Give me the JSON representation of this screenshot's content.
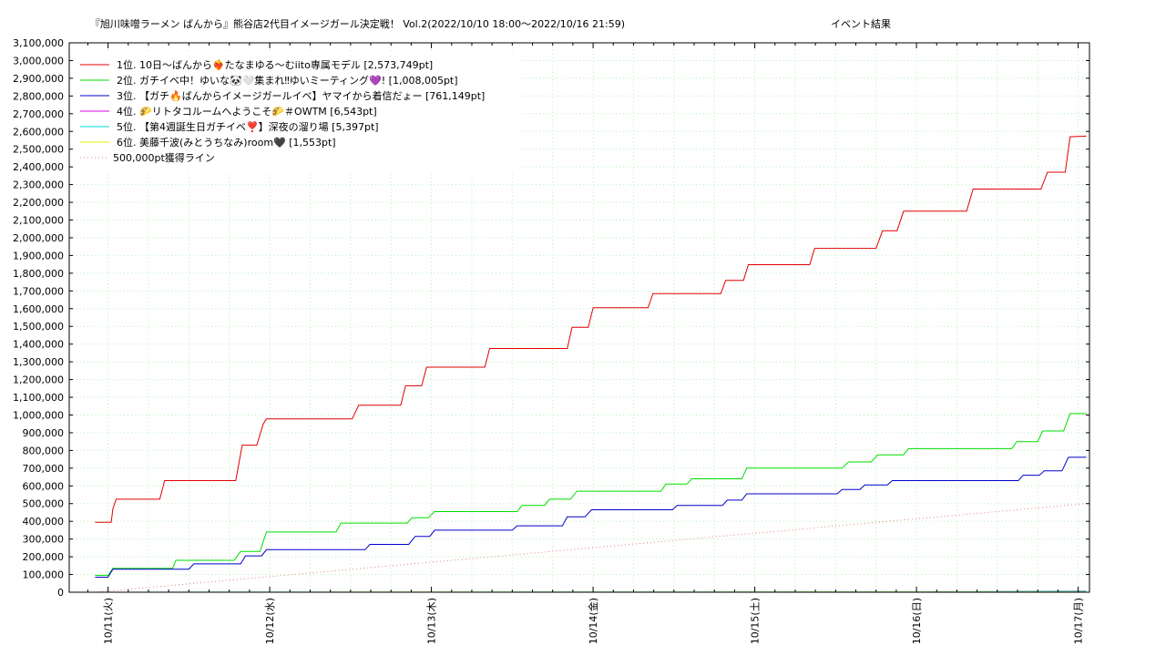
{
  "chart_data": {
    "type": "line",
    "title": "『旭川味噌ラーメン ばんから』熊谷店2代目イメージガール決定戦！ Vol.2(2022/10/10 18:00～2022/10/16 21:59)",
    "subtitle": "イベント結果",
    "xlabel": "",
    "ylabel": "",
    "ylim": [
      0,
      3100000
    ],
    "xlim": [
      0,
      6.07
    ],
    "grid": true,
    "legend_position": "top-left",
    "y_ticks": [
      "0",
      "100,000",
      "200,000",
      "300,000",
      "400,000",
      "500,000",
      "600,000",
      "700,000",
      "800,000",
      "900,000",
      "1,000,000",
      "1,100,000",
      "1,200,000",
      "1,300,000",
      "1,400,000",
      "1,500,000",
      "1,600,000",
      "1,700,000",
      "1,800,000",
      "1,900,000",
      "2,000,000",
      "2,100,000",
      "2,200,000",
      "2,300,000",
      "2,400,000",
      "2,500,000",
      "2,600,000",
      "2,700,000",
      "2,800,000",
      "2,900,000",
      "3,000,000",
      "3,100,000"
    ],
    "x_ticks": [
      {
        "value": 0,
        "label": "10/11(火)"
      },
      {
        "value": 1,
        "label": "10/12(水)"
      },
      {
        "value": 2,
        "label": "10/13(木)"
      },
      {
        "value": 3,
        "label": "10/14(金)"
      },
      {
        "value": 4,
        "label": "10/15(土)"
      },
      {
        "value": 5,
        "label": "10/16(日)"
      },
      {
        "value": 6,
        "label": "10/17(月)"
      }
    ],
    "series": [
      {
        "name": "1位. 10日〜ばんから❤️‍🔥たなまゆる〜むiito専属モデル [2,573,749pt]",
        "color": "#e00000",
        "points": [
          [
            -0.08,
            395000
          ],
          [
            0.02,
            395000
          ],
          [
            0.03,
            470000
          ],
          [
            0.05,
            525000
          ],
          [
            0.32,
            525000
          ],
          [
            0.35,
            630000
          ],
          [
            0.79,
            630000
          ],
          [
            0.83,
            830000
          ],
          [
            0.92,
            830000
          ],
          [
            0.96,
            950000
          ],
          [
            0.98,
            978000
          ],
          [
            1.51,
            978000
          ],
          [
            1.55,
            1055000
          ],
          [
            1.81,
            1055000
          ],
          [
            1.84,
            1165000
          ],
          [
            1.94,
            1165000
          ],
          [
            1.97,
            1270000
          ],
          [
            2.33,
            1270000
          ],
          [
            2.36,
            1375000
          ],
          [
            2.84,
            1375000
          ],
          [
            2.87,
            1495000
          ],
          [
            2.97,
            1495000
          ],
          [
            3.0,
            1605000
          ],
          [
            3.34,
            1605000
          ],
          [
            3.37,
            1685000
          ],
          [
            3.79,
            1685000
          ],
          [
            3.82,
            1760000
          ],
          [
            3.93,
            1760000
          ],
          [
            3.96,
            1848000
          ],
          [
            4.34,
            1848000
          ],
          [
            4.37,
            1940000
          ],
          [
            4.75,
            1940000
          ],
          [
            4.79,
            2040000
          ],
          [
            4.88,
            2040000
          ],
          [
            4.92,
            2150000
          ],
          [
            5.31,
            2150000
          ],
          [
            5.35,
            2275000
          ],
          [
            5.77,
            2275000
          ],
          [
            5.81,
            2370000
          ],
          [
            5.92,
            2370000
          ],
          [
            5.95,
            2570000
          ],
          [
            6.05,
            2573749
          ]
        ]
      },
      {
        "name": "2位. ガチイベ中！ゆいな🐼🤍集まれ‼ゆいミーティング💜! [1,008,005pt]",
        "color": "#00dd00",
        "points": [
          [
            -0.08,
            95000
          ],
          [
            0.0,
            95000
          ],
          [
            0.03,
            135000
          ],
          [
            0.4,
            135000
          ],
          [
            0.42,
            180000
          ],
          [
            0.78,
            180000
          ],
          [
            0.82,
            230000
          ],
          [
            0.94,
            230000
          ],
          [
            0.98,
            340000
          ],
          [
            1.41,
            340000
          ],
          [
            1.44,
            390000
          ],
          [
            1.85,
            390000
          ],
          [
            1.88,
            420000
          ],
          [
            1.98,
            420000
          ],
          [
            2.02,
            455000
          ],
          [
            2.53,
            455000
          ],
          [
            2.56,
            490000
          ],
          [
            2.7,
            490000
          ],
          [
            2.73,
            525000
          ],
          [
            2.86,
            525000
          ],
          [
            2.9,
            570000
          ],
          [
            3.42,
            570000
          ],
          [
            3.45,
            610000
          ],
          [
            3.58,
            610000
          ],
          [
            3.61,
            640000
          ],
          [
            3.92,
            640000
          ],
          [
            3.95,
            700000
          ],
          [
            4.54,
            700000
          ],
          [
            4.58,
            735000
          ],
          [
            4.72,
            735000
          ],
          [
            4.76,
            775000
          ],
          [
            4.92,
            775000
          ],
          [
            4.95,
            810000
          ],
          [
            5.59,
            810000
          ],
          [
            5.62,
            850000
          ],
          [
            5.75,
            850000
          ],
          [
            5.78,
            910000
          ],
          [
            5.91,
            910000
          ],
          [
            5.95,
            1008005
          ],
          [
            6.05,
            1008005
          ]
        ]
      },
      {
        "name": "3位. 【ガチ🔥ばんからイメージガールイベ】ヤマイから着信だょー [761,149pt]",
        "color": "#0000cc",
        "points": [
          [
            -0.08,
            85000
          ],
          [
            0.0,
            85000
          ],
          [
            0.03,
            130000
          ],
          [
            0.5,
            130000
          ],
          [
            0.53,
            160000
          ],
          [
            0.82,
            160000
          ],
          [
            0.85,
            205000
          ],
          [
            0.95,
            205000
          ],
          [
            0.98,
            240000
          ],
          [
            1.59,
            240000
          ],
          [
            1.62,
            270000
          ],
          [
            1.86,
            270000
          ],
          [
            1.9,
            315000
          ],
          [
            1.99,
            315000
          ],
          [
            2.02,
            350000
          ],
          [
            2.5,
            350000
          ],
          [
            2.53,
            375000
          ],
          [
            2.81,
            375000
          ],
          [
            2.84,
            425000
          ],
          [
            2.95,
            425000
          ],
          [
            2.99,
            465000
          ],
          [
            3.49,
            465000
          ],
          [
            3.52,
            490000
          ],
          [
            3.8,
            490000
          ],
          [
            3.83,
            520000
          ],
          [
            3.92,
            520000
          ],
          [
            3.95,
            555000
          ],
          [
            4.51,
            555000
          ],
          [
            4.54,
            580000
          ],
          [
            4.65,
            580000
          ],
          [
            4.68,
            605000
          ],
          [
            4.82,
            605000
          ],
          [
            4.85,
            630000
          ],
          [
            5.63,
            630000
          ],
          [
            5.66,
            660000
          ],
          [
            5.76,
            660000
          ],
          [
            5.79,
            685000
          ],
          [
            5.9,
            685000
          ],
          [
            5.94,
            761149
          ],
          [
            6.05,
            761149
          ]
        ]
      },
      {
        "name": "4位. 🌮リトタコルームへようこそ🌮＃OWTM [6,543pt]",
        "color": "#dd00dd",
        "points": [
          [
            -0.08,
            0
          ],
          [
            5.0,
            0
          ],
          [
            6.05,
            6543
          ]
        ]
      },
      {
        "name": "5位. 【第4週誕生日ガチイベ❣️】深夜の溜り場 [5,397pt]",
        "color": "#00dddd",
        "points": [
          [
            -0.08,
            0
          ],
          [
            5.0,
            2000
          ],
          [
            6.05,
            5397
          ]
        ]
      },
      {
        "name": "6位. 美藤千波(みとうちなみ)room🖤 [1,553pt]",
        "color": "#eeee00",
        "points": [
          [
            -0.08,
            0
          ],
          [
            6.05,
            1553
          ]
        ]
      },
      {
        "name": "500,000pt獲得ライン",
        "color": "#e08080",
        "dotted": true,
        "points": [
          [
            -0.08,
            0
          ],
          [
            6.05,
            500000
          ]
        ]
      }
    ]
  }
}
